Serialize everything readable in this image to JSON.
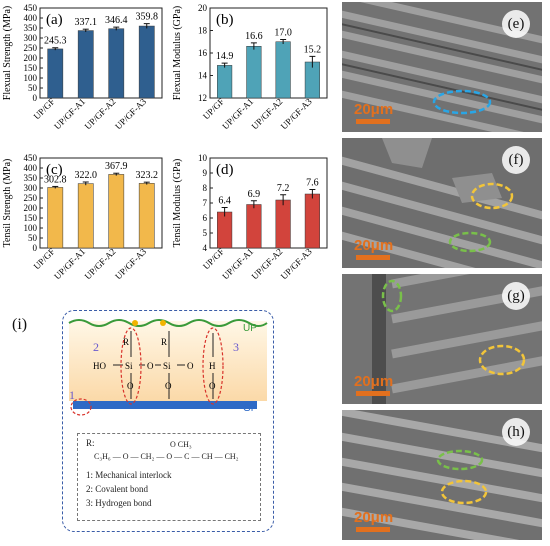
{
  "chart_data": [
    {
      "type": "bar",
      "panel_label": "(a)",
      "categories": [
        "UP/GF",
        "UP/GF-A1",
        "UP/GF-A2",
        "UP/GF-A3"
      ],
      "values": [
        245.3,
        337.1,
        346.4,
        359.8
      ],
      "value_labels": [
        "245.3",
        "337.1",
        "346.4",
        "359.8"
      ],
      "errors": [
        6,
        7,
        8,
        12
      ],
      "ylabel": "Flexual Strength (MPa)",
      "ylim": [
        0,
        450
      ],
      "yticks": [
        "0",
        "50",
        "100",
        "150",
        "200",
        "250",
        "300",
        "350",
        "400",
        "450"
      ],
      "color": "#2f5f8f"
    },
    {
      "type": "bar",
      "panel_label": "(b)",
      "categories": [
        "UP/GF",
        "UP/GF-A1",
        "UP/GF-A2",
        "UP/GF-A3"
      ],
      "values": [
        14.9,
        16.6,
        17.0,
        15.2
      ],
      "value_labels": [
        "14.9",
        "16.6",
        "17.0",
        "15.2"
      ],
      "errors": [
        0.2,
        0.3,
        0.2,
        0.5
      ],
      "ylabel": "Flexual Modulus (GPa)",
      "ylim": [
        12,
        20
      ],
      "yticks": [
        "12",
        "14",
        "16",
        "18",
        "20"
      ],
      "color": "#4fa3b7"
    },
    {
      "type": "bar",
      "panel_label": "(c)",
      "categories": [
        "UP/GF",
        "UP/GF-A1",
        "UP/GF-A2",
        "UP/GF-A3"
      ],
      "values": [
        302.8,
        322.0,
        367.9,
        323.2
      ],
      "value_labels": [
        "302.8",
        "322.0",
        "367.9",
        "323.2"
      ],
      "errors": [
        5,
        8,
        6,
        6
      ],
      "ylabel": "Tensil Strength (MPa)",
      "ylim": [
        0,
        450
      ],
      "yticks": [
        "0",
        "50",
        "100",
        "150",
        "200",
        "250",
        "300",
        "350",
        "400",
        "450"
      ],
      "color": "#f2b84b"
    },
    {
      "type": "bar",
      "panel_label": "(d)",
      "categories": [
        "UP/GF",
        "UP/GF-A1",
        "UP/GF-A2",
        "UP/GF-A3"
      ],
      "values": [
        6.4,
        6.9,
        7.2,
        7.6
      ],
      "value_labels": [
        "6.4",
        "6.9",
        "7.2",
        "7.6"
      ],
      "errors": [
        0.3,
        0.25,
        0.35,
        0.3
      ],
      "ylabel": "Tensil Modulus (GPa)",
      "ylim": [
        4,
        10
      ],
      "yticks": [
        "4",
        "5",
        "6",
        "7",
        "8",
        "9",
        "10"
      ],
      "color": "#d2443c"
    }
  ],
  "sem_panels": [
    {
      "label": "(e)",
      "scale": "20μm"
    },
    {
      "label": "(f)",
      "scale": "20μm"
    },
    {
      "label": "(g)",
      "scale": "20μm"
    },
    {
      "label": "(h)",
      "scale": "20μm"
    }
  ],
  "schematic": {
    "panel_label": "(i)",
    "up_label": "UP",
    "gf_label": "GF",
    "num1": "1",
    "num2": "2",
    "num3": "3",
    "r_label": "R",
    "si_label": "Si",
    "o_label": "O",
    "ho_label": "HO",
    "h_label": "H",
    "legend_r": "R:",
    "legend_formula_left": "C₃H₆ — O — CH₂ — O — C — CH — CH₂",
    "legend_formula_top": "O        CH₃",
    "legend_items": [
      "1:  Mechanical interlock",
      "2:  Covalent bond",
      "3:  Hydrogen bond"
    ]
  }
}
